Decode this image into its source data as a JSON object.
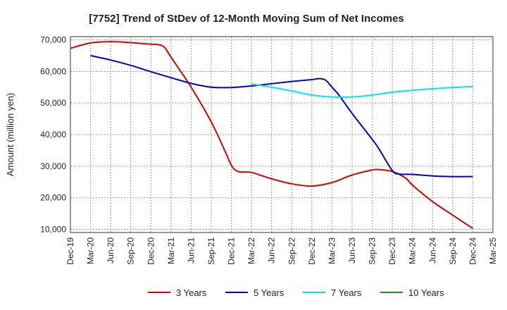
{
  "chart_data": {
    "type": "line",
    "title": "[7752]  Trend of StDev of 12-Month Moving Sum of Net Incomes",
    "ylabel": "Amount (million yen)",
    "xlabel": "",
    "ylim": [
      9000,
      71000
    ],
    "yticks": [
      10000,
      20000,
      30000,
      40000,
      50000,
      60000,
      70000
    ],
    "ytick_labels": [
      "10,000",
      "20,000",
      "30,000",
      "40,000",
      "50,000",
      "60,000",
      "70,000"
    ],
    "x_tick_labels": [
      "Dec-19",
      "Mar-20",
      "Jun-20",
      "Sep-20",
      "Dec-20",
      "Mar-21",
      "Jun-21",
      "Sep-21",
      "Dec-21",
      "Mar-22",
      "Jun-22",
      "Sep-22",
      "Dec-22",
      "Mar-23",
      "Jun-23",
      "Sep-23",
      "Dec-23",
      "Mar-24",
      "Jun-24",
      "Sep-24",
      "Dec-24",
      "Mar-25"
    ],
    "grid": true,
    "legend_position": "bottom",
    "series": [
      {
        "name": "3 Years",
        "color": "#dd0000",
        "points": [
          [
            "Dec-19",
            67300
          ],
          [
            "Mar-20",
            69000
          ],
          [
            "Jun-20",
            69400
          ],
          [
            "Sep-20",
            69100
          ],
          [
            "Dec-20",
            68600
          ],
          [
            "Jan-21",
            68500
          ],
          [
            "Feb-21",
            67700
          ],
          [
            "Mar-21",
            64500
          ],
          [
            "Jun-21",
            55000
          ],
          [
            "Sep-21",
            44000
          ],
          [
            "Nov-21",
            35000
          ],
          [
            "Dec-21",
            30300
          ],
          [
            "Jan-22",
            28300
          ],
          [
            "Mar-22",
            28000
          ],
          [
            "Jun-22",
            26000
          ],
          [
            "Sep-22",
            24400
          ],
          [
            "Dec-22",
            23700
          ],
          [
            "Mar-23",
            24800
          ],
          [
            "Jun-23",
            27200
          ],
          [
            "Sep-23",
            28800
          ],
          [
            "Oct-23",
            28900
          ],
          [
            "Dec-23",
            28300
          ],
          [
            "Feb-24",
            26200
          ],
          [
            "Mar-24",
            24000
          ],
          [
            "Jun-24",
            18800
          ],
          [
            "Sep-24",
            14500
          ],
          [
            "Dec-24",
            10300
          ]
        ]
      },
      {
        "name": "5 Years",
        "color": "#0000cc",
        "points": [
          [
            "Mar-20",
            65000
          ],
          [
            "Jun-20",
            63600
          ],
          [
            "Sep-20",
            61900
          ],
          [
            "Dec-20",
            59900
          ],
          [
            "Mar-21",
            58000
          ],
          [
            "Jun-21",
            56200
          ],
          [
            "Sep-21",
            55000
          ],
          [
            "Dec-21",
            54900
          ],
          [
            "Mar-22",
            55400
          ],
          [
            "Jun-22",
            56100
          ],
          [
            "Sep-22",
            56800
          ],
          [
            "Dec-22",
            57400
          ],
          [
            "Jan-23",
            57700
          ],
          [
            "Feb-23",
            57300
          ],
          [
            "Mar-23",
            55000
          ],
          [
            "Apr-23",
            52600
          ],
          [
            "Jun-23",
            46700
          ],
          [
            "Sep-23",
            38500
          ],
          [
            "Oct-23",
            35500
          ],
          [
            "Dec-23",
            28600
          ],
          [
            "Jan-24",
            27500
          ],
          [
            "Mar-24",
            27400
          ],
          [
            "Jun-24",
            26900
          ],
          [
            "Sep-24",
            26700
          ],
          [
            "Dec-24",
            26700
          ]
        ]
      },
      {
        "name": "7 Years",
        "color": "#00e5ee",
        "points": [
          [
            "Mar-22",
            56000
          ],
          [
            "Jun-22",
            55000
          ],
          [
            "Sep-22",
            53800
          ],
          [
            "Dec-22",
            52500
          ],
          [
            "Mar-23",
            51900
          ],
          [
            "Jun-23",
            51900
          ],
          [
            "Sep-23",
            52500
          ],
          [
            "Dec-23",
            53400
          ],
          [
            "Mar-24",
            54000
          ],
          [
            "Jun-24",
            54500
          ],
          [
            "Sep-24",
            54900
          ],
          [
            "Dec-24",
            55200
          ]
        ]
      },
      {
        "name": "10 Years",
        "color": "#228b22",
        "points": []
      }
    ]
  }
}
